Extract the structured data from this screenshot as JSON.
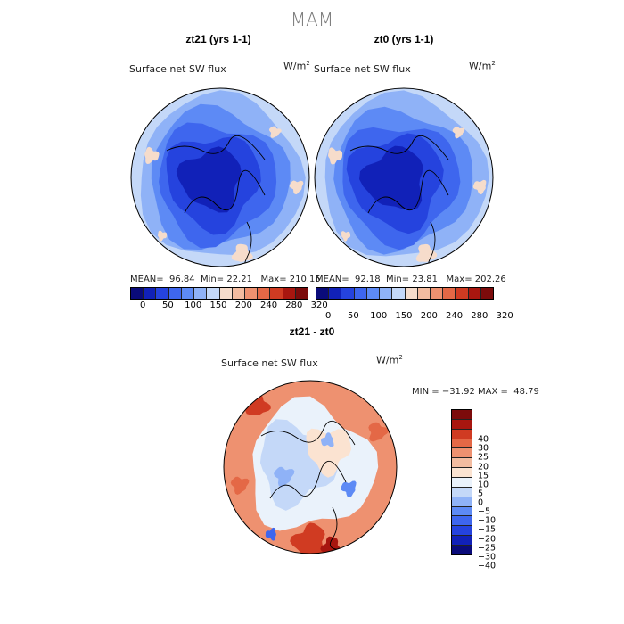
{
  "season": "MAM",
  "colors": {
    "flux_palette": [
      "#0a0b7a",
      "#1121b8",
      "#2543de",
      "#3e66ee",
      "#5d8af5",
      "#8fb2f7",
      "#c4d8f8",
      "#f6dccb",
      "#f3bca0",
      "#ee9170",
      "#e46846",
      "#d03b22",
      "#a8160f",
      "#7c0b0b"
    ],
    "diff_palette": [
      "#0a0b7a",
      "#1121b8",
      "#2543de",
      "#3e66ee",
      "#5d8af5",
      "#8fb2f7",
      "#c4d8f8",
      "#eaf2fb",
      "#fbe3d1",
      "#f3bca0",
      "#ee9170",
      "#e46846",
      "#d03b22",
      "#a8160f",
      "#7c0b0b"
    ]
  },
  "panels": [
    {
      "title": "zt21 (yrs 1-1)",
      "variable": "Surface net SW flux",
      "units_base": "W/m",
      "units_sup": "2",
      "mean_label": "MEAN=",
      "mean": "96.84",
      "min_label": "Min=",
      "min": "22.21",
      "max_label": "Max=",
      "max": "210.15"
    },
    {
      "title": "zt0 (yrs 1-1)",
      "variable": "Surface net SW flux",
      "units_base": "W/m",
      "units_sup": "2",
      "mean_label": "MEAN=",
      "mean": "92.18",
      "min_label": "Min=",
      "min": "23.81",
      "max_label": "Max=",
      "max": "202.26"
    }
  ],
  "flux_ticks": [
    "0",
    "50",
    "100",
    "150",
    "200",
    "240",
    "280",
    "320"
  ],
  "difference": {
    "title": "zt21 - zt0",
    "variable": "Surface net SW flux",
    "units_base": "W/m",
    "units_sup": "2",
    "min_label": "MIN =",
    "min": "−31.92",
    "max_label": "MAX =",
    "max": "48.79",
    "ticks": [
      "40",
      "30",
      "25",
      "20",
      "15",
      "10",
      "5",
      "0",
      "−5",
      "−10",
      "−15",
      "−20",
      "−25",
      "−30",
      "−40"
    ]
  }
}
